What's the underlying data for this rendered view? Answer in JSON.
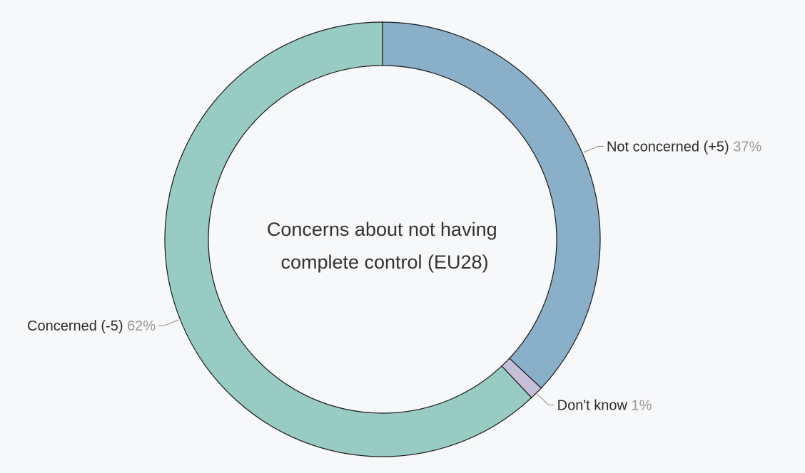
{
  "chart_data": {
    "type": "pie",
    "title": "Concerns about not having complete control (EU28)",
    "title_lines": [
      "Concerns about not having",
      "complete control (EU28)"
    ],
    "donut": true,
    "background": "#f7f8fa",
    "slices": [
      {
        "label": "Not concerned (+5)",
        "value": 37,
        "pct_label": "37%",
        "color": "#8aafc9"
      },
      {
        "label": "Don't know",
        "value": 1,
        "pct_label": "1%",
        "color": "#c6bfd8"
      },
      {
        "label": "Concerned (-5)",
        "value": 62,
        "pct_label": "62%",
        "color": "#98cbc1"
      }
    ]
  }
}
